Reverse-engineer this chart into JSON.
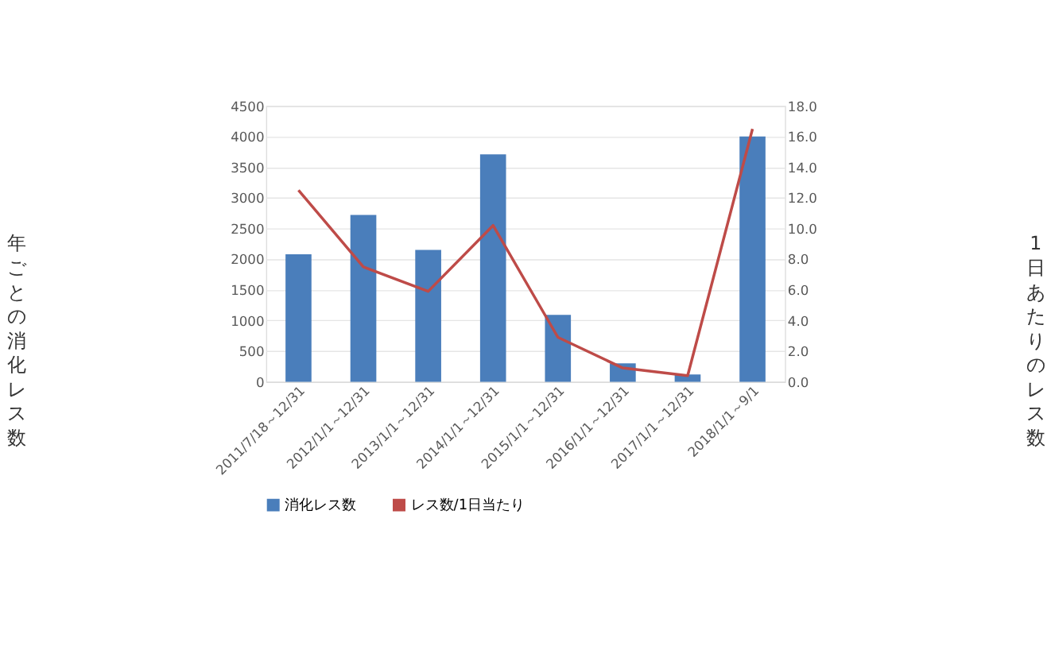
{
  "chart_data": {
    "type": "bar",
    "categories": [
      "2011/7/18～12/31",
      "2012/1/1～12/31",
      "2013/1/1～12/31",
      "2014/1/1～12/31",
      "2015/1/1～12/31",
      "2016/1/1～12/31",
      "2017/1/1～12/31",
      "2018/1/1～9/1"
    ],
    "series": [
      {
        "name": "消化レス数",
        "color": "#4a7ebb",
        "values": [
          2080,
          2720,
          2150,
          3710,
          1090,
          300,
          120,
          4000
        ]
      },
      {
        "name": "レス数/1日当たり",
        "type": "line",
        "axis": "y2",
        "color": "#be4b48",
        "values": [
          12.5,
          7.5,
          5.9,
          10.2,
          2.9,
          0.9,
          0.4,
          16.5
        ]
      }
    ],
    "ylabel": "年ごとの消化レス数",
    "y2label": "1日あたりのレス数",
    "ylim": [
      0,
      4500
    ],
    "yticks": [
      0,
      500,
      1000,
      1500,
      2000,
      2500,
      3000,
      3500,
      4000,
      4500
    ],
    "y2lim": [
      0,
      18
    ],
    "y2ticks": [
      {
        "value": 0,
        "label": "0.0"
      },
      {
        "value": 2,
        "label": "2.0"
      },
      {
        "value": 4,
        "label": "4.0"
      },
      {
        "value": 6,
        "label": "6.0"
      },
      {
        "value": 8,
        "label": "8.0"
      },
      {
        "value": 10,
        "label": "10.0"
      },
      {
        "value": 12,
        "label": "12.0"
      },
      {
        "value": 14,
        "label": "14.0"
      },
      {
        "value": 16,
        "label": "16.0"
      },
      {
        "value": 18,
        "label": "18.0"
      }
    ],
    "grid": "y",
    "legend": "bottom"
  }
}
